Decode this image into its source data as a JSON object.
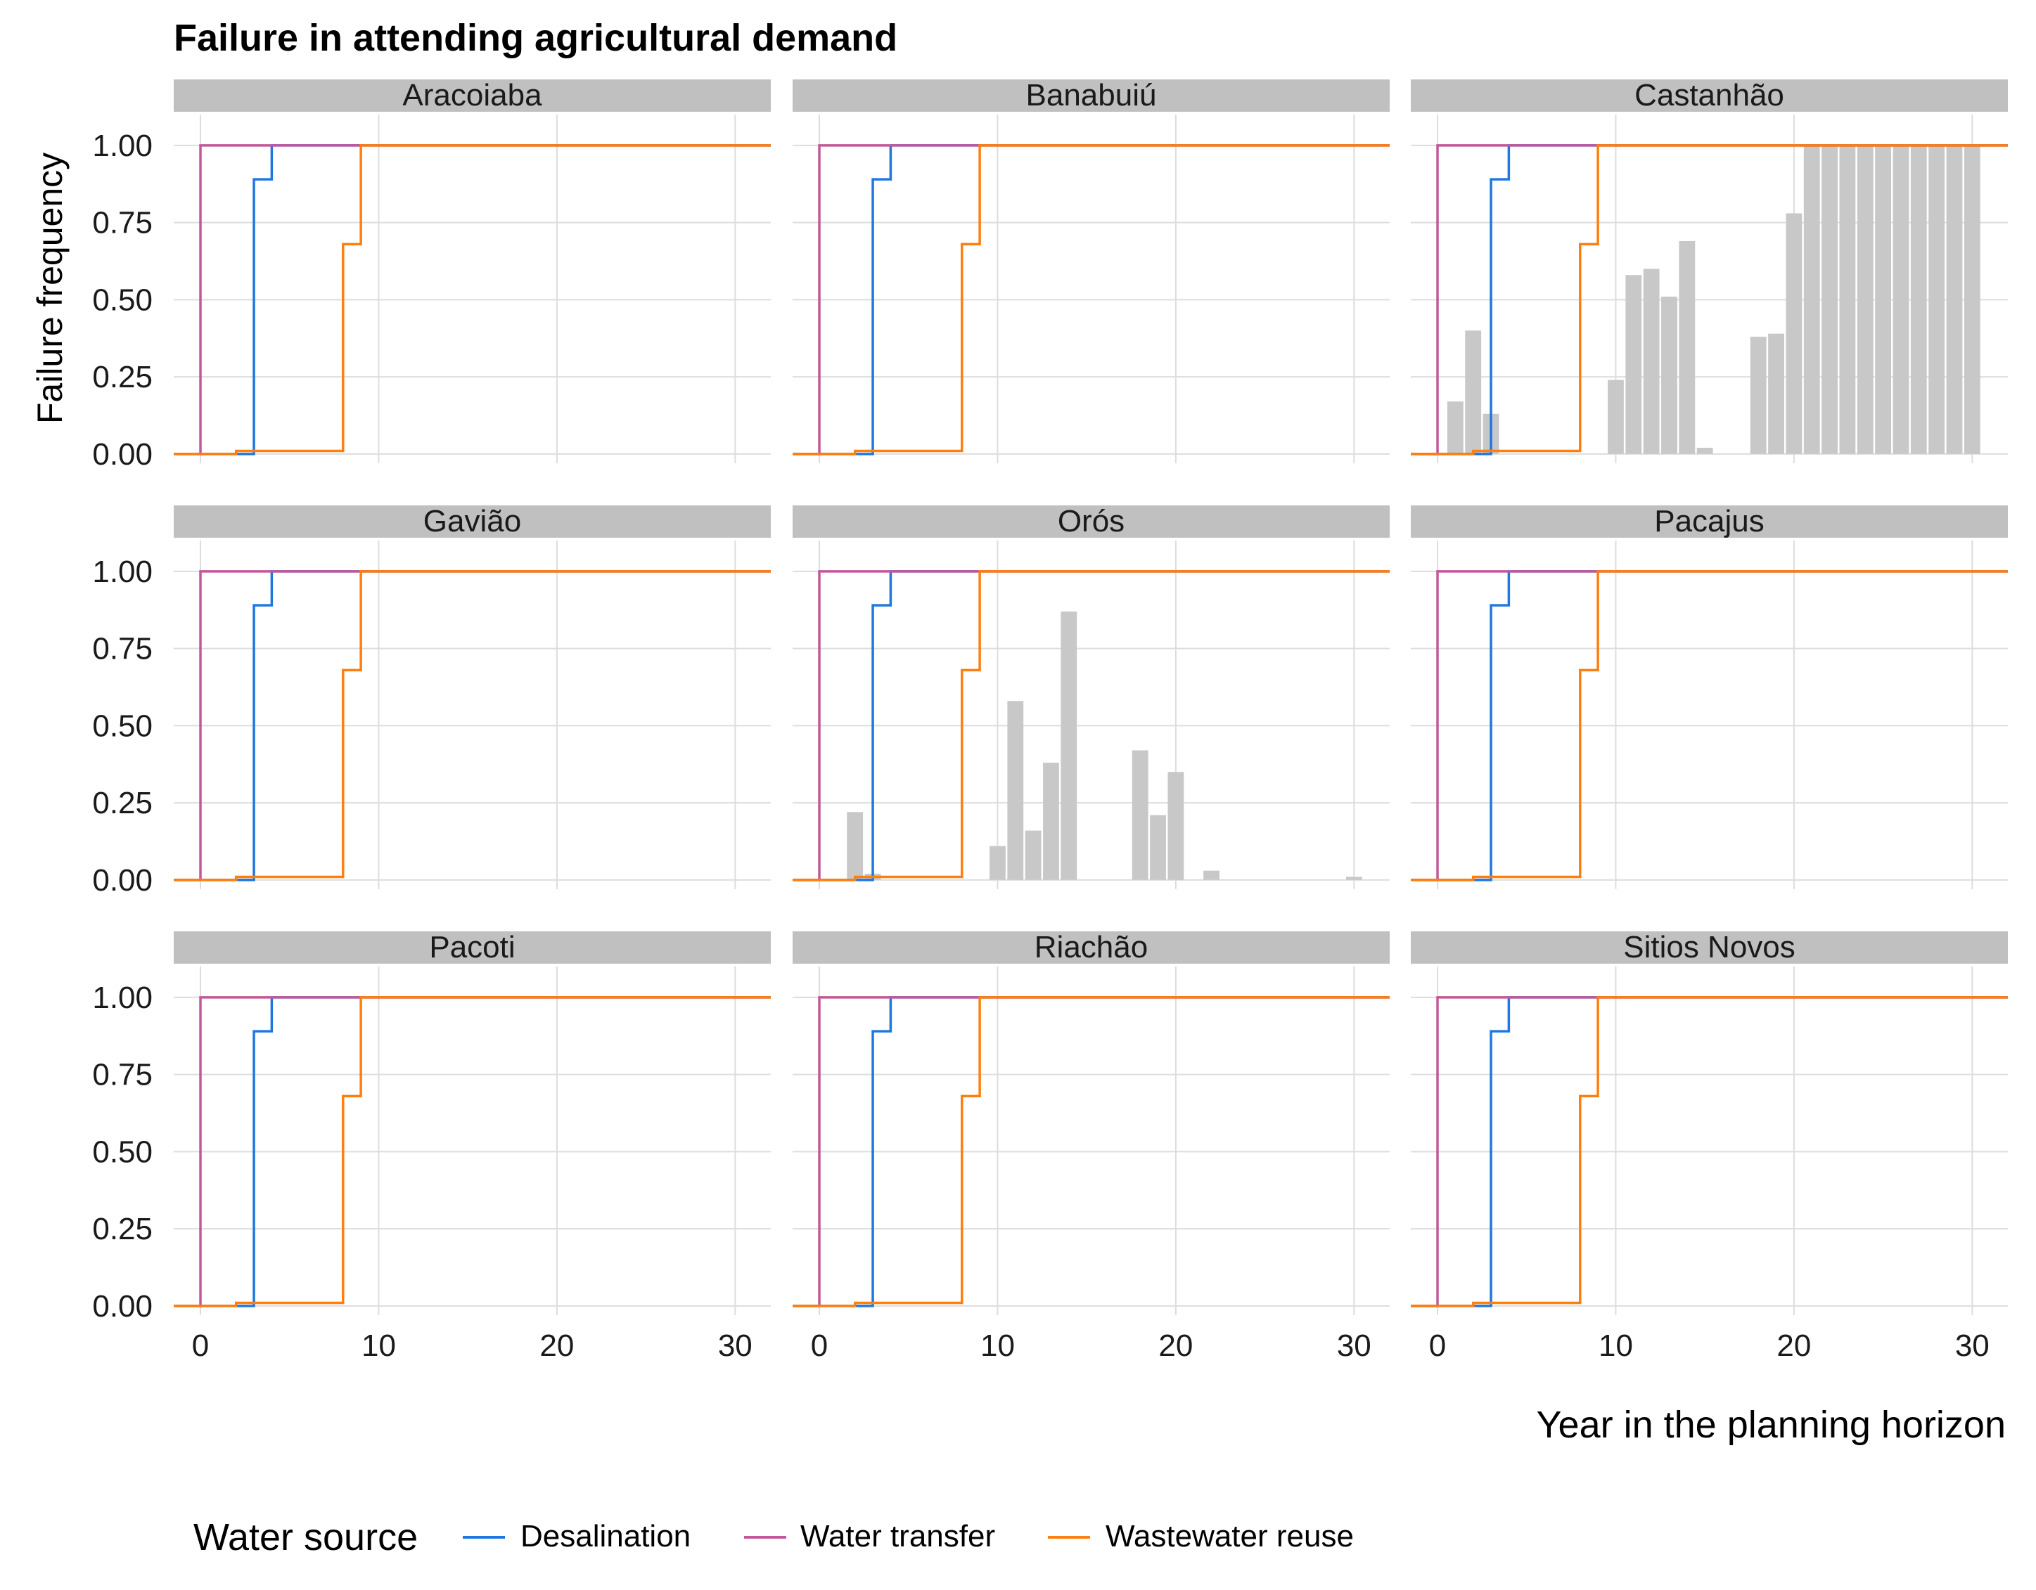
{
  "chart_data": {
    "type": "line",
    "title": "Failure in attending agricultural demand",
    "xlabel": "Year in the planning horizon",
    "ylabel": "Failure frequency",
    "xlim": [
      -1.5,
      32
    ],
    "ylim": [
      -0.03,
      1.1
    ],
    "x_ticks": [
      0,
      10,
      20,
      30
    ],
    "x_tick_labels": [
      "0",
      "10",
      "20",
      "30"
    ],
    "y_ticks": [
      0,
      0.25,
      0.5,
      0.75,
      1.0
    ],
    "y_tick_labels": [
      "0.00",
      "0.25",
      "0.50",
      "0.75",
      "1.00"
    ],
    "grid": true,
    "legend": {
      "title": "Water source",
      "placement": "bottom",
      "entries": [
        "Desalination",
        "Water transfer",
        "Wastewater reuse"
      ]
    },
    "colors": {
      "Desalination": "#1f77e0",
      "Water transfer": "#c2589b",
      "Wastewater reuse": "#ff7f0e",
      "bars": "#c8c8c8",
      "strip": "#c0c0c0",
      "grid": "#dddddd"
    },
    "series": [
      {
        "name": "Desalination",
        "step_x": [
          -2,
          3,
          3,
          4,
          4,
          33
        ],
        "step_y": [
          0,
          0,
          0.89,
          0.89,
          1.0,
          1.0
        ]
      },
      {
        "name": "Water transfer",
        "step_x": [
          -2,
          0,
          0,
          33
        ],
        "step_y": [
          0,
          0,
          1.0,
          1.0
        ]
      },
      {
        "name": "Wastewater reuse",
        "step_x": [
          -2,
          2,
          2,
          8,
          8,
          9,
          9,
          33
        ],
        "step_y": [
          0,
          0,
          0.01,
          0.01,
          0.68,
          0.68,
          1.0,
          1.0
        ]
      }
    ],
    "panels": [
      {
        "name": "Aracoiaba",
        "bars": []
      },
      {
        "name": "Banabuiú",
        "bars": []
      },
      {
        "name": "Castanhão",
        "bars": [
          {
            "x": 1,
            "y": 0.17
          },
          {
            "x": 2,
            "y": 0.4
          },
          {
            "x": 3,
            "y": 0.13
          },
          {
            "x": 10,
            "y": 0.24
          },
          {
            "x": 11,
            "y": 0.58
          },
          {
            "x": 12,
            "y": 0.6
          },
          {
            "x": 13,
            "y": 0.51
          },
          {
            "x": 14,
            "y": 0.69
          },
          {
            "x": 15,
            "y": 0.02
          },
          {
            "x": 18,
            "y": 0.38
          },
          {
            "x": 19,
            "y": 0.39
          },
          {
            "x": 20,
            "y": 0.78
          },
          {
            "x": 21,
            "y": 1.0
          },
          {
            "x": 22,
            "y": 1.0
          },
          {
            "x": 23,
            "y": 1.0
          },
          {
            "x": 24,
            "y": 1.0
          },
          {
            "x": 25,
            "y": 1.0
          },
          {
            "x": 26,
            "y": 1.0
          },
          {
            "x": 27,
            "y": 1.0
          },
          {
            "x": 28,
            "y": 1.0
          },
          {
            "x": 29,
            "y": 1.0
          },
          {
            "x": 30,
            "y": 1.0
          }
        ]
      },
      {
        "name": "Gavião",
        "bars": []
      },
      {
        "name": "Orós",
        "bars": [
          {
            "x": 2,
            "y": 0.22
          },
          {
            "x": 3,
            "y": 0.02
          },
          {
            "x": 10,
            "y": 0.11
          },
          {
            "x": 11,
            "y": 0.58
          },
          {
            "x": 12,
            "y": 0.16
          },
          {
            "x": 13,
            "y": 0.38
          },
          {
            "x": 14,
            "y": 0.87
          },
          {
            "x": 18,
            "y": 0.42
          },
          {
            "x": 19,
            "y": 0.21
          },
          {
            "x": 20,
            "y": 0.35
          },
          {
            "x": 22,
            "y": 0.03
          },
          {
            "x": 30,
            "y": 0.01
          }
        ]
      },
      {
        "name": "Pacajus",
        "bars": []
      },
      {
        "name": "Pacoti",
        "bars": []
      },
      {
        "name": "Riachão",
        "bars": []
      },
      {
        "name": "Sitios Novos",
        "bars": []
      }
    ]
  }
}
